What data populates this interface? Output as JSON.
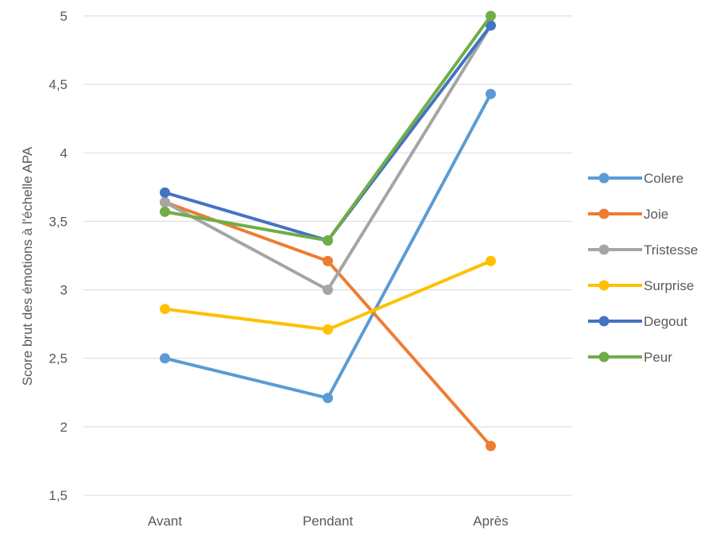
{
  "chart_data": {
    "type": "line",
    "title": "",
    "xlabel": "",
    "ylabel": "Score brut des émotions à l'échelle APA",
    "categories": [
      "Avant",
      "Pendant",
      "Après"
    ],
    "ylim": [
      1.5,
      5
    ],
    "yticks": [
      1.5,
      2,
      2.5,
      3,
      3.5,
      4,
      4.5,
      5
    ],
    "ytick_labels": [
      "1,5",
      "2",
      "2,5",
      "3",
      "3,5",
      "4",
      "4,5",
      "5"
    ],
    "grid": "horizontal",
    "legend_position": "right",
    "series": [
      {
        "name": "Colere",
        "color": "#5B9BD5",
        "values": [
          2.5,
          2.21,
          4.43
        ]
      },
      {
        "name": "Joie",
        "color": "#ED7D31",
        "values": [
          3.64,
          3.21,
          1.86
        ]
      },
      {
        "name": "Tristesse",
        "color": "#A5A5A5",
        "values": [
          3.64,
          3.0,
          4.93
        ]
      },
      {
        "name": "Surprise",
        "color": "#FFC000",
        "values": [
          2.86,
          2.71,
          3.21
        ]
      },
      {
        "name": "Degout",
        "color": "#4472C4",
        "values": [
          3.71,
          3.36,
          4.93
        ]
      },
      {
        "name": "Peur",
        "color": "#70AD47",
        "values": [
          3.57,
          3.36,
          5.0
        ]
      }
    ]
  }
}
